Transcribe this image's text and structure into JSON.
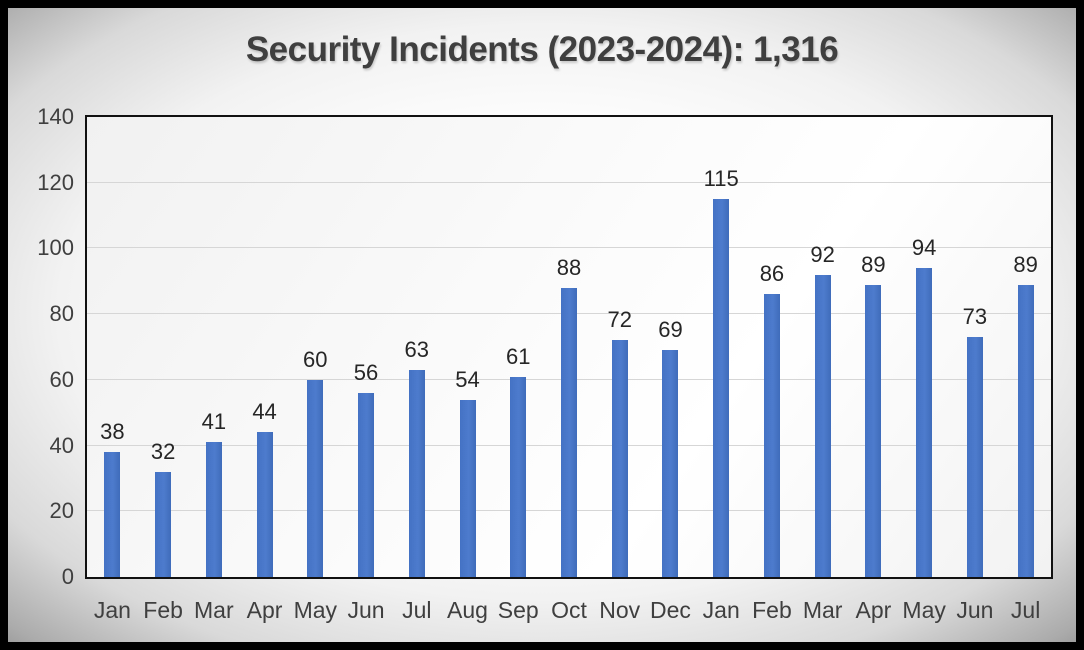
{
  "title": "Security Incidents (2023-2024): 1,316",
  "chart_data": {
    "type": "bar",
    "title": "Security Incidents (2023-2024): 1,316",
    "categories": [
      "Jan",
      "Feb",
      "Mar",
      "Apr",
      "May",
      "Jun",
      "Jul",
      "Aug",
      "Sep",
      "Oct",
      "Nov",
      "Dec",
      "Jan",
      "Feb",
      "Mar",
      "Apr",
      "May",
      "Jun",
      "Jul"
    ],
    "values": [
      38,
      32,
      41,
      44,
      60,
      56,
      63,
      54,
      61,
      88,
      72,
      69,
      115,
      86,
      92,
      89,
      94,
      73,
      89
    ],
    "total_label": "1,316",
    "xlabel": "",
    "ylabel": "",
    "ylim": [
      0,
      140
    ],
    "yticks": [
      0,
      20,
      40,
      60,
      80,
      100,
      120,
      140
    ],
    "grid": true,
    "legend": false,
    "data_labels": true,
    "bar_color": "#4472C4",
    "gridline_color": "#D6D6D6",
    "plot_border_color": "#111111",
    "label_color": "#262626",
    "axis_label_color": "#3F3F3F"
  }
}
